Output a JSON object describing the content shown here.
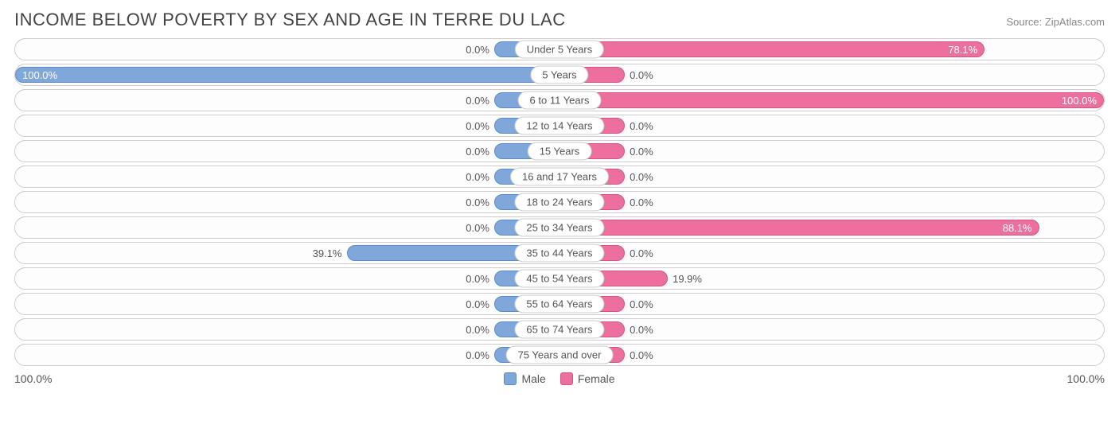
{
  "title": "INCOME BELOW POVERTY BY SEX AND AGE IN TERRE DU LAC",
  "source": "Source: ZipAtlas.com",
  "axis": {
    "left_label": "100.0%",
    "right_label": "100.0%"
  },
  "legend": {
    "male": {
      "label": "Male",
      "color": "#7fa7db",
      "border": "#5f89c4"
    },
    "female": {
      "label": "Female",
      "color": "#ed6f9d",
      "border": "#d65286"
    }
  },
  "colors": {
    "row_border": "#cccccc",
    "text": "#555555",
    "title": "#444444",
    "background": "#ffffff"
  },
  "min_bar_pct": 12,
  "rows": [
    {
      "age": "Under 5 Years",
      "male": 0.0,
      "female": 78.1
    },
    {
      "age": "5 Years",
      "male": 100.0,
      "female": 0.0
    },
    {
      "age": "6 to 11 Years",
      "male": 0.0,
      "female": 100.0
    },
    {
      "age": "12 to 14 Years",
      "male": 0.0,
      "female": 0.0
    },
    {
      "age": "15 Years",
      "male": 0.0,
      "female": 0.0
    },
    {
      "age": "16 and 17 Years",
      "male": 0.0,
      "female": 0.0
    },
    {
      "age": "18 to 24 Years",
      "male": 0.0,
      "female": 0.0
    },
    {
      "age": "25 to 34 Years",
      "male": 0.0,
      "female": 88.1
    },
    {
      "age": "35 to 44 Years",
      "male": 39.1,
      "female": 0.0
    },
    {
      "age": "45 to 54 Years",
      "male": 0.0,
      "female": 19.9
    },
    {
      "age": "55 to 64 Years",
      "male": 0.0,
      "female": 0.0
    },
    {
      "age": "65 to 74 Years",
      "male": 0.0,
      "female": 0.0
    },
    {
      "age": "75 Years and over",
      "male": 0.0,
      "female": 0.0
    }
  ]
}
